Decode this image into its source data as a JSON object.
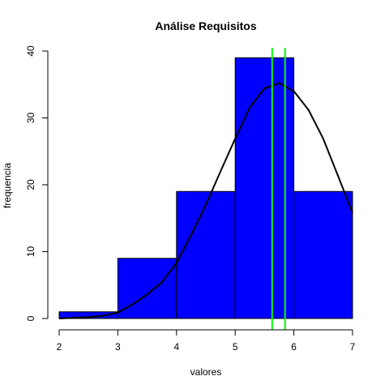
{
  "chart_data": {
    "type": "bar",
    "title": "Análise Requisitos",
    "xlabel": "valores",
    "ylabel": "frequencia",
    "xlim": [
      2,
      7
    ],
    "ylim": [
      0,
      40
    ],
    "x_ticks": [
      "2",
      "3",
      "4",
      "5",
      "6",
      "7"
    ],
    "y_ticks": [
      "0",
      "10",
      "20",
      "30",
      "40"
    ],
    "bins": [
      {
        "start": 2,
        "end": 3,
        "value": 1
      },
      {
        "start": 3,
        "end": 4,
        "value": 9
      },
      {
        "start": 4,
        "end": 5,
        "value": 19
      },
      {
        "start": 5,
        "end": 6,
        "value": 39
      },
      {
        "start": 6,
        "end": 7,
        "value": 19
      }
    ],
    "density_curve": {
      "x": [
        2.0,
        2.25,
        2.5,
        2.75,
        3.0,
        3.25,
        3.5,
        3.75,
        4.0,
        4.25,
        4.5,
        4.75,
        5.0,
        5.25,
        5.5,
        5.75,
        6.0,
        6.25,
        6.5,
        6.75,
        7.0
      ],
      "y": [
        0.0,
        0.1,
        0.2,
        0.4,
        0.9,
        2.1,
        3.6,
        5.4,
        8.3,
        12.5,
        17.0,
        22.0,
        26.9,
        31.6,
        34.4,
        35.2,
        34.0,
        31.2,
        26.9,
        21.4,
        15.8
      ]
    },
    "vertical_lines": [
      {
        "x": 5.63,
        "color": "#00ff00"
      },
      {
        "x": 5.85,
        "color": "#00ff00"
      }
    ],
    "colors": {
      "bar_fill": "#0000ff",
      "bar_stroke": "#000000",
      "curve": "#000000"
    },
    "grid": false,
    "legend": "none"
  }
}
